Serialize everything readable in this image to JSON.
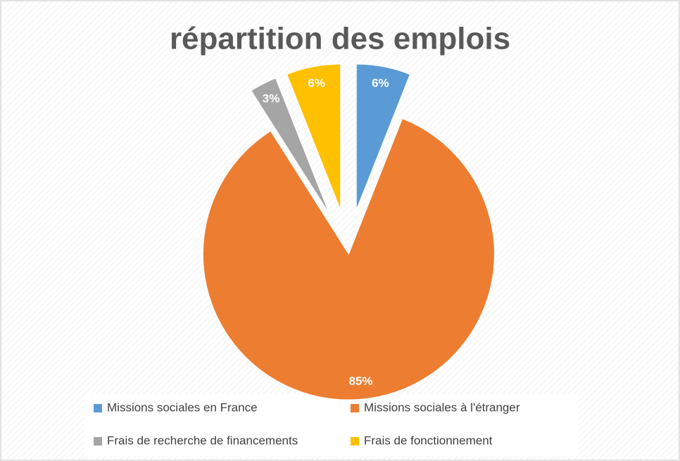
{
  "chart_data": {
    "type": "pie",
    "title": "répartition des emplois",
    "categories": [
      "Missions sociales en France",
      "Missions sociales à l'étranger",
      "Frais de recherche de financements",
      "Frais de fonctionnement"
    ],
    "values": [
      6,
      85,
      3,
      6
    ],
    "value_labels": [
      "6%",
      "85%",
      "3%",
      "6%"
    ],
    "colors": [
      "#5b9bd5",
      "#ed7d31",
      "#a5a5a5",
      "#ffc000"
    ],
    "legend": "bottom"
  }
}
